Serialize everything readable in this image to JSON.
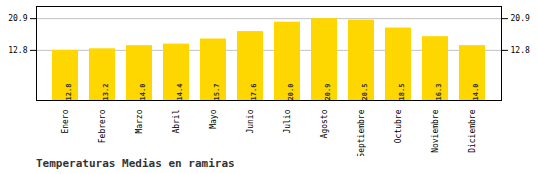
{
  "chart_data": {
    "type": "bar",
    "title": "Temperaturas Medias en ramiras",
    "categories": [
      "Enero",
      "Febrero",
      "Marzo",
      "Abril",
      "Mayo",
      "Junio",
      "Julio",
      "Agosto",
      "Septiembre",
      "Octubre",
      "Noviembre",
      "Diciembre"
    ],
    "values": [
      12.8,
      13.2,
      14.0,
      14.4,
      15.7,
      17.6,
      20.0,
      20.9,
      20.5,
      18.5,
      16.3,
      14.0
    ],
    "value_labels": [
      "12.8",
      "13.2",
      "14.0",
      "14.4",
      "15.7",
      "17.6",
      "20.0",
      "20.9",
      "20.5",
      "18.5",
      "16.3",
      "14.0"
    ],
    "color": "#FFD700",
    "ylim": [
      0.0,
      24.0
    ],
    "yticks": [
      12.8,
      20.9
    ],
    "grid": true,
    "data_labels": true
  }
}
